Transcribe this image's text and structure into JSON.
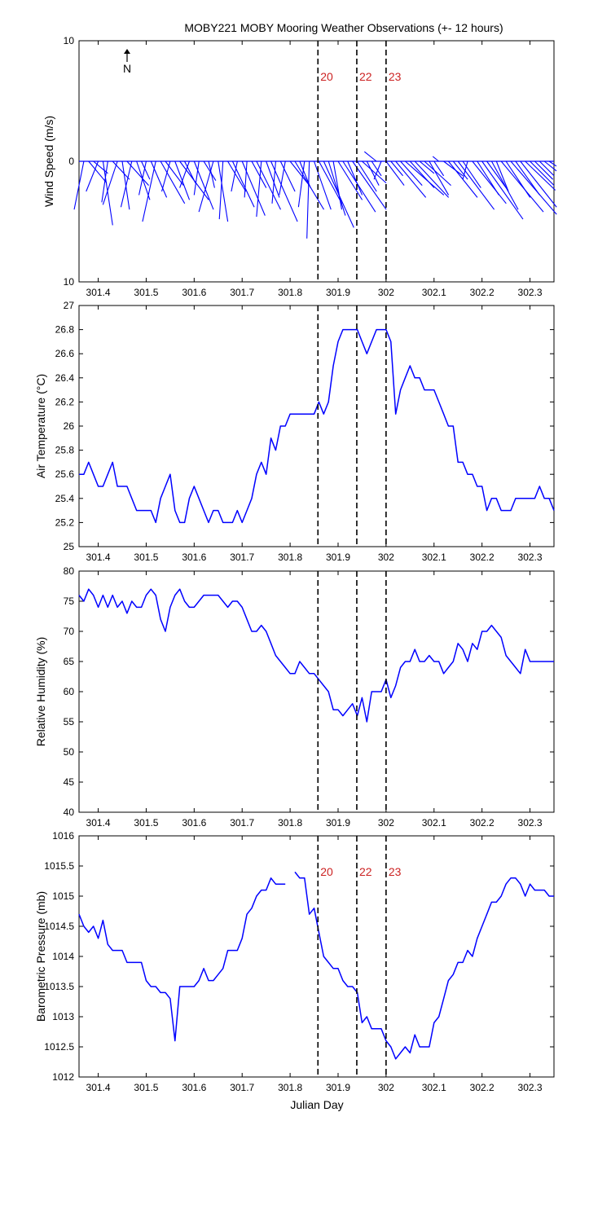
{
  "title": "MOBY221 MOBY Mooring Weather Observations (+- 12 hours)",
  "colors": {
    "series": "#0000ff",
    "marker_label": "#cc2222",
    "axis": "#000000"
  },
  "x_axis": {
    "label": "Julian Day",
    "range": [
      301.36,
      302.35
    ],
    "ticks": [
      301.4,
      301.5,
      301.6,
      301.7,
      301.8,
      301.9,
      302.0,
      302.1,
      302.2,
      302.3
    ],
    "tick_labels": [
      "301.4",
      "301.5",
      "301.6",
      "301.7",
      "301.8",
      "301.9",
      "302",
      "302.1",
      "302.2",
      "302.3"
    ]
  },
  "markers": [
    {
      "x": 301.858,
      "label": "20"
    },
    {
      "x": 301.939,
      "label": "22"
    },
    {
      "x": 302.0,
      "label": "23"
    }
  ],
  "north_label": "N",
  "chart_data": [
    {
      "type": "quiver",
      "ylabel": "Wind Speed (m/s)",
      "ylim": [
        -10,
        10
      ],
      "ytick_labels": [
        "10",
        "0",
        "10"
      ],
      "show_markers": true,
      "x": [
        301.37,
        301.38,
        301.39,
        301.4,
        301.41,
        301.42,
        301.43,
        301.44,
        301.45,
        301.46,
        301.47,
        301.48,
        301.49,
        301.5,
        301.51,
        301.52,
        301.53,
        301.54,
        301.55,
        301.56,
        301.57,
        301.58,
        301.59,
        301.6,
        301.61,
        301.62,
        301.63,
        301.64,
        301.65,
        301.66,
        301.67,
        301.68,
        301.69,
        301.7,
        301.71,
        301.72,
        301.73,
        301.74,
        301.75,
        301.76,
        301.77,
        301.78,
        301.79,
        301.8,
        301.81,
        301.82,
        301.83,
        301.84,
        301.85,
        301.86,
        301.87,
        301.88,
        301.89,
        301.9,
        301.91,
        301.92,
        301.93,
        301.94,
        301.95,
        301.96,
        301.97,
        301.98,
        301.99,
        302.0,
        302.01,
        302.02,
        302.03,
        302.04,
        302.05,
        302.06,
        302.07,
        302.08,
        302.09,
        302.1,
        302.11,
        302.12,
        302.13,
        302.14,
        302.15,
        302.16,
        302.17,
        302.18,
        302.19,
        302.2,
        302.21,
        302.22,
        302.23,
        302.24,
        302.25,
        302.26,
        302.27,
        302.28,
        302.29,
        302.3,
        302.31,
        302.32,
        302.33,
        302.34
      ],
      "u": [
        -0.8,
        1.5,
        1.2,
        -1.0,
        0.8,
        -0.5,
        1.4,
        -1.2,
        0.6,
        1.8,
        -0.9,
        1.1,
        0.7,
        -0.6,
        1.3,
        -1.1,
        2.0,
        1.5,
        -0.7,
        1.2,
        2.4,
        0.9,
        -0.8,
        1.6,
        -0.4,
        1.0,
        0.5,
        -1.2,
        0.8,
        -0.3,
        1.5,
        1.8,
        -0.5,
        1.9,
        -0.2,
        1.2,
        2.0,
        -0.4,
        1.1,
        2.2,
        -0.3,
        1.2,
        -0.5,
        1.6,
        2.4,
        0.9,
        -0.5,
        -0.2,
        1.4,
        1.9,
        2.5,
        1.4,
        0.7,
        2.0,
        2.7,
        1.2,
        2.8,
        1.6,
        2.0,
        1.0,
        0.8,
        -1.0,
        -0.6,
        1.5,
        1.0,
        2.5,
        1.8,
        3.2,
        2.0,
        2.8,
        1.2,
        2.2,
        1.6,
        0.8,
        -0.5,
        1.6,
        2.4,
        1.2,
        3.0,
        1.5,
        -0.4,
        2.8,
        1.8,
        3.4,
        1.6,
        2.2,
        1.0,
        3.5,
        2.0,
        3.8,
        2.0,
        3.0,
        2.5,
        2.0,
        1.5,
        1.2,
        1.0,
        0.6
      ],
      "v": [
        -4.0,
        -1.8,
        -1.0,
        -2.5,
        -5.3,
        -3.4,
        -1.5,
        -3.6,
        -4.0,
        -2.0,
        -3.8,
        -3.2,
        -1.5,
        -2.8,
        -3.0,
        -5.0,
        -3.5,
        -2.0,
        -2.5,
        -3.2,
        -3.2,
        -1.8,
        -2.2,
        -4.0,
        -2.8,
        -1.6,
        -2.2,
        -4.2,
        -5.0,
        -4.8,
        -2.5,
        -3.8,
        -2.5,
        -4.5,
        -3.0,
        -2.2,
        -4.0,
        -4.6,
        -3.0,
        -5.0,
        -3.5,
        -2.5,
        -2.8,
        -2.0,
        -4.0,
        -2.2,
        -3.8,
        -6.4,
        -4.0,
        -3.5,
        -5.5,
        -4.5,
        -4.0,
        -3.2,
        -4.2,
        -2.8,
        -4.0,
        -2.5,
        -1.8,
        -2.0,
        -1.2,
        0.8,
        -1.5,
        -2.0,
        -1.2,
        -3.0,
        -2.0,
        -2.8,
        -2.2,
        -3.0,
        -1.0,
        -2.0,
        -2.8,
        -1.2,
        0.4,
        -1.2,
        -3.0,
        -1.5,
        -4.0,
        -2.2,
        -1.5,
        -3.5,
        -2.8,
        -4.8,
        -2.2,
        -4.0,
        -2.5,
        -4.2,
        -3.0,
        -4.4,
        -2.8,
        -3.8,
        -2.4,
        -2.0,
        -1.5,
        -1.2,
        -0.8,
        -0.4
      ]
    },
    {
      "type": "line",
      "ylabel": "Air Temperature (°C)",
      "ylim": [
        25,
        27
      ],
      "yticks": [
        25,
        25.2,
        25.4,
        25.6,
        25.8,
        26,
        26.2,
        26.4,
        26.6,
        26.8,
        27
      ],
      "ytick_labels": [
        "25",
        "25.2",
        "25.4",
        "25.6",
        "25.8",
        "26",
        "26.2",
        "26.4",
        "26.6",
        "26.8",
        "27"
      ],
      "show_markers": false,
      "x": [
        301.36,
        301.37,
        301.38,
        301.39,
        301.4,
        301.41,
        301.42,
        301.43,
        301.44,
        301.45,
        301.46,
        301.47,
        301.48,
        301.49,
        301.5,
        301.51,
        301.52,
        301.53,
        301.54,
        301.55,
        301.56,
        301.57,
        301.58,
        301.59,
        301.6,
        301.61,
        301.62,
        301.63,
        301.64,
        301.65,
        301.66,
        301.67,
        301.68,
        301.69,
        301.7,
        301.71,
        301.72,
        301.73,
        301.74,
        301.75,
        301.76,
        301.77,
        301.78,
        301.79,
        301.8,
        301.81,
        301.82,
        301.83,
        301.84,
        301.85,
        301.86,
        301.87,
        301.88,
        301.89,
        301.9,
        301.91,
        301.92,
        301.93,
        301.94,
        301.95,
        301.96,
        301.97,
        301.98,
        301.99,
        302.0,
        302.01,
        302.02,
        302.03,
        302.04,
        302.05,
        302.06,
        302.07,
        302.08,
        302.09,
        302.1,
        302.11,
        302.12,
        302.13,
        302.14,
        302.15,
        302.16,
        302.17,
        302.18,
        302.19,
        302.2,
        302.21,
        302.22,
        302.23,
        302.24,
        302.25,
        302.26,
        302.27,
        302.28,
        302.29,
        302.3,
        302.31,
        302.32,
        302.33,
        302.34,
        302.35
      ],
      "y": [
        25.6,
        25.6,
        25.7,
        25.6,
        25.5,
        25.5,
        25.6,
        25.7,
        25.5,
        25.5,
        25.5,
        25.4,
        25.3,
        25.3,
        25.3,
        25.3,
        25.2,
        25.4,
        25.5,
        25.6,
        25.3,
        25.2,
        25.2,
        25.4,
        25.5,
        25.4,
        25.3,
        25.2,
        25.3,
        25.3,
        25.2,
        25.2,
        25.2,
        25.3,
        25.2,
        25.3,
        25.4,
        25.6,
        25.7,
        25.6,
        25.9,
        25.8,
        26.0,
        26.0,
        26.1,
        26.1,
        26.1,
        26.1,
        26.1,
        26.1,
        26.2,
        26.1,
        26.2,
        26.5,
        26.7,
        26.8,
        26.8,
        26.8,
        26.8,
        26.7,
        26.6,
        26.7,
        26.8,
        26.8,
        26.8,
        26.7,
        26.1,
        26.3,
        26.4,
        26.5,
        26.4,
        26.4,
        26.3,
        26.3,
        26.3,
        26.2,
        26.1,
        26.0,
        26.0,
        25.7,
        25.7,
        25.6,
        25.6,
        25.5,
        25.5,
        25.3,
        25.4,
        25.4,
        25.3,
        25.3,
        25.3,
        25.4,
        25.4,
        25.4,
        25.4,
        25.4,
        25.5,
        25.4,
        25.4,
        25.3
      ]
    },
    {
      "type": "line",
      "ylabel": "Relative Humidity (%)",
      "ylim": [
        40,
        80
      ],
      "yticks": [
        40,
        45,
        50,
        55,
        60,
        65,
        70,
        75,
        80
      ],
      "ytick_labels": [
        "40",
        "45",
        "50",
        "55",
        "60",
        "65",
        "70",
        "75",
        "80"
      ],
      "show_markers": true,
      "x": [
        301.36,
        301.37,
        301.38,
        301.39,
        301.4,
        301.41,
        301.42,
        301.43,
        301.44,
        301.45,
        301.46,
        301.47,
        301.48,
        301.49,
        301.5,
        301.51,
        301.52,
        301.53,
        301.54,
        301.55,
        301.56,
        301.57,
        301.58,
        301.59,
        301.6,
        301.61,
        301.62,
        301.63,
        301.64,
        301.65,
        301.66,
        301.67,
        301.68,
        301.69,
        301.7,
        301.71,
        301.72,
        301.73,
        301.74,
        301.75,
        301.76,
        301.77,
        301.78,
        301.79,
        301.8,
        301.81,
        301.82,
        301.83,
        301.84,
        301.85,
        301.86,
        301.87,
        301.88,
        301.89,
        301.9,
        301.91,
        301.92,
        301.93,
        301.94,
        301.95,
        301.96,
        301.97,
        301.98,
        301.99,
        302.0,
        302.01,
        302.02,
        302.03,
        302.04,
        302.05,
        302.06,
        302.07,
        302.08,
        302.09,
        302.1,
        302.11,
        302.12,
        302.13,
        302.14,
        302.15,
        302.16,
        302.17,
        302.18,
        302.19,
        302.2,
        302.21,
        302.22,
        302.23,
        302.24,
        302.25,
        302.26,
        302.27,
        302.28,
        302.29,
        302.3,
        302.31,
        302.32,
        302.33,
        302.34,
        302.35
      ],
      "y": [
        76,
        75,
        77,
        76,
        74,
        76,
        74,
        76,
        74,
        75,
        73,
        75,
        74,
        74,
        76,
        77,
        76,
        72,
        70,
        74,
        76,
        77,
        75,
        74,
        74,
        75,
        76,
        76,
        76,
        76,
        75,
        74,
        75,
        75,
        74,
        72,
        70,
        70,
        71,
        70,
        68,
        66,
        65,
        64,
        63,
        63,
        65,
        64,
        63,
        63,
        62,
        61,
        60,
        57,
        57,
        56,
        57,
        58,
        56,
        59,
        55,
        60,
        60,
        60,
        62,
        59,
        61,
        64,
        65,
        65,
        67,
        65,
        65,
        66,
        65,
        65,
        63,
        64,
        65,
        68,
        67,
        65,
        68,
        67,
        70,
        70,
        71,
        70,
        69,
        66,
        65,
        64,
        63,
        67,
        65,
        65,
        65,
        65,
        65,
        65
      ]
    },
    {
      "type": "line",
      "ylabel": "Barometric Pressure (mb)",
      "ylim": [
        1012,
        1016
      ],
      "yticks": [
        1012,
        1012.5,
        1013,
        1013.5,
        1014,
        1014.5,
        1015,
        1015.5,
        1016
      ],
      "ytick_labels": [
        "1012",
        "1012.5",
        "1013",
        "1013.5",
        "1014",
        "1014.5",
        "1015",
        "1015.5",
        "1016"
      ],
      "show_markers": true,
      "x": [
        301.36,
        301.37,
        301.38,
        301.39,
        301.4,
        301.41,
        301.42,
        301.43,
        301.44,
        301.45,
        301.46,
        301.47,
        301.48,
        301.49,
        301.5,
        301.51,
        301.52,
        301.53,
        301.54,
        301.55,
        301.56,
        301.57,
        301.58,
        301.59,
        301.6,
        301.61,
        301.62,
        301.63,
        301.64,
        301.65,
        301.66,
        301.67,
        301.68,
        301.69,
        301.7,
        301.71,
        301.72,
        301.73,
        301.74,
        301.75,
        301.76,
        301.77,
        301.78,
        301.79,
        301.8,
        301.81,
        301.82,
        301.83,
        301.84,
        301.85,
        301.86,
        301.87,
        301.88,
        301.89,
        301.9,
        301.91,
        301.92,
        301.93,
        301.94,
        301.95,
        301.96,
        301.97,
        301.98,
        301.99,
        302.0,
        302.01,
        302.02,
        302.03,
        302.04,
        302.05,
        302.06,
        302.07,
        302.08,
        302.09,
        302.1,
        302.11,
        302.12,
        302.13,
        302.14,
        302.15,
        302.16,
        302.17,
        302.18,
        302.19,
        302.2,
        302.21,
        302.22,
        302.23,
        302.24,
        302.25,
        302.26,
        302.27,
        302.28,
        302.29,
        302.3,
        302.31,
        302.32,
        302.33,
        302.34,
        302.35
      ],
      "y": [
        1014.7,
        1014.5,
        1014.4,
        1014.5,
        1014.3,
        1014.6,
        1014.2,
        1014.1,
        1014.1,
        1014.1,
        1013.9,
        1013.9,
        1013.9,
        1013.9,
        1013.6,
        1013.5,
        1013.5,
        1013.4,
        1013.4,
        1013.3,
        1012.6,
        1013.5,
        1013.5,
        1013.5,
        1013.5,
        1013.6,
        1013.8,
        1013.6,
        1013.6,
        1013.7,
        1013.8,
        1014.1,
        1014.1,
        1014.1,
        1014.3,
        1014.7,
        1014.8,
        1015.0,
        1015.1,
        1015.1,
        1015.3,
        1015.2,
        1015.2,
        1015.2,
        null,
        1015.4,
        1015.3,
        1015.3,
        1014.7,
        1014.8,
        1014.4,
        1014.0,
        1013.9,
        1013.8,
        1013.8,
        1013.6,
        1013.5,
        1013.5,
        1013.4,
        1012.9,
        1013.0,
        1012.8,
        1012.8,
        1012.8,
        1012.6,
        1012.5,
        1012.3,
        1012.4,
        1012.5,
        1012.4,
        1012.7,
        1012.5,
        1012.5,
        1012.5,
        1012.9,
        1013.0,
        1013.3,
        1013.6,
        1013.7,
        1013.9,
        1013.9,
        1014.1,
        1014.0,
        1014.3,
        1014.5,
        1014.7,
        1014.9,
        1014.9,
        1015.0,
        1015.2,
        1015.3,
        1015.3,
        1015.2,
        1015.0,
        1015.2,
        1015.1,
        1015.1,
        1015.1,
        1015.0,
        1015.0
      ]
    }
  ]
}
